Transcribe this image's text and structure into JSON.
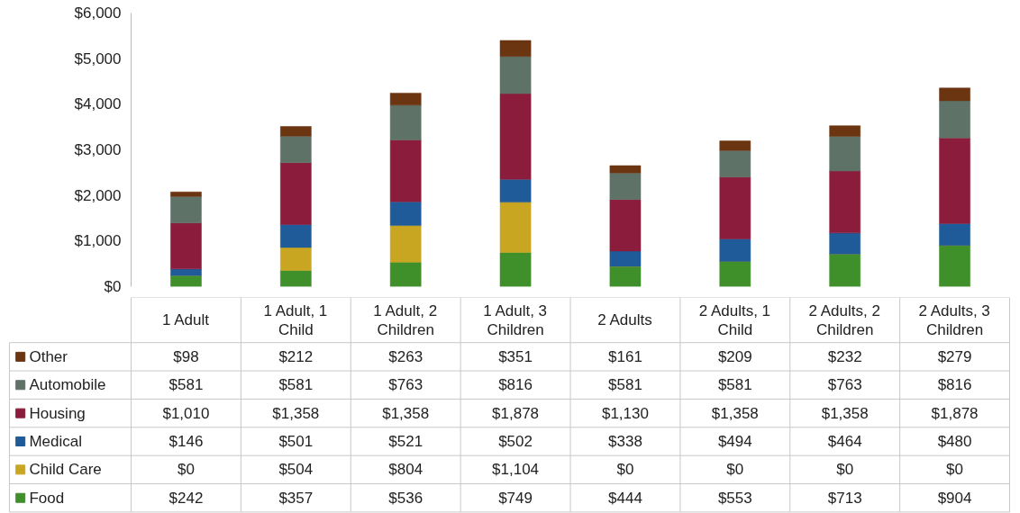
{
  "chart_data": {
    "type": "bar",
    "stacked": true,
    "categories": [
      "1 Adult",
      "1 Adult, 1 Child",
      "1 Adult, 2 Children",
      "1 Adult, 3 Children",
      "2 Adults",
      "2 Adults, 1 Child",
      "2 Adults, 2 Children",
      "2 Adults, 3 Children"
    ],
    "series": [
      {
        "name": "Food",
        "color": "#3f8f2a",
        "values": [
          242,
          357,
          536,
          749,
          444,
          553,
          713,
          904
        ],
        "value_labels": [
          "$242",
          "$357",
          "$536",
          "$749",
          "$444",
          "$553",
          "$713",
          "$904"
        ]
      },
      {
        "name": "Child Care",
        "color": "#c9a621",
        "values": [
          0,
          504,
          804,
          1104,
          0,
          0,
          0,
          0
        ],
        "value_labels": [
          "$0",
          "$504",
          "$804",
          "$1,104",
          "$0",
          "$0",
          "$0",
          "$0"
        ]
      },
      {
        "name": "Medical",
        "color": "#1f5b98",
        "values": [
          146,
          501,
          521,
          502,
          338,
          494,
          464,
          480
        ],
        "value_labels": [
          "$146",
          "$501",
          "$521",
          "$502",
          "$338",
          "$494",
          "$464",
          "$480"
        ]
      },
      {
        "name": "Housing",
        "color": "#8c1c3c",
        "values": [
          1010,
          1358,
          1358,
          1878,
          1130,
          1358,
          1358,
          1878
        ],
        "value_labels": [
          "$1,010",
          "$1,358",
          "$1,358",
          "$1,878",
          "$1,130",
          "$1,358",
          "$1,358",
          "$1,878"
        ]
      },
      {
        "name": "Automobile",
        "color": "#5f7268",
        "values": [
          581,
          581,
          763,
          816,
          581,
          581,
          763,
          816
        ],
        "value_labels": [
          "$581",
          "$581",
          "$763",
          "$816",
          "$581",
          "$581",
          "$763",
          "$816"
        ]
      },
      {
        "name": "Other",
        "color": "#6a3510",
        "values": [
          98,
          212,
          263,
          351,
          161,
          209,
          232,
          279
        ],
        "value_labels": [
          "$98",
          "$212",
          "$263",
          "$351",
          "$161",
          "$209",
          "$232",
          "$279"
        ]
      }
    ],
    "ylim": [
      0,
      6000
    ],
    "yticks": [
      {
        "value": 0,
        "label": "$0"
      },
      {
        "value": 1000,
        "label": "$1,000"
      },
      {
        "value": 2000,
        "label": "$2,000"
      },
      {
        "value": 3000,
        "label": "$3,000"
      },
      {
        "value": 4000,
        "label": "$4,000"
      },
      {
        "value": 5000,
        "label": "$5,000"
      },
      {
        "value": 6000,
        "label": "$6,000"
      }
    ],
    "grid": false,
    "legend": "bottom",
    "data_labels": true
  }
}
